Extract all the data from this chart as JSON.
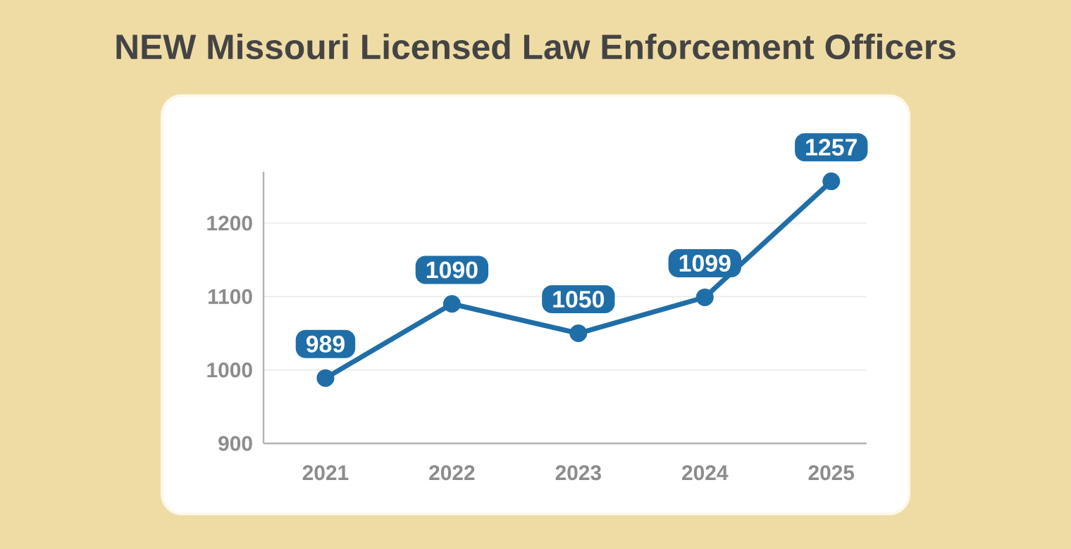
{
  "chart_data": {
    "type": "line",
    "title": "NEW Missouri Licensed Law Enforcement Officers",
    "categories": [
      "2021",
      "2022",
      "2023",
      "2024",
      "2025"
    ],
    "values": [
      989,
      1090,
      1050,
      1099,
      1257
    ],
    "color": "#1f6ea8",
    "ylim": [
      900,
      1270
    ],
    "yticks": [
      900,
      1000,
      1100,
      1200
    ],
    "grid": "y",
    "marker": "circle",
    "line_style": "solid",
    "data_labels": true
  }
}
